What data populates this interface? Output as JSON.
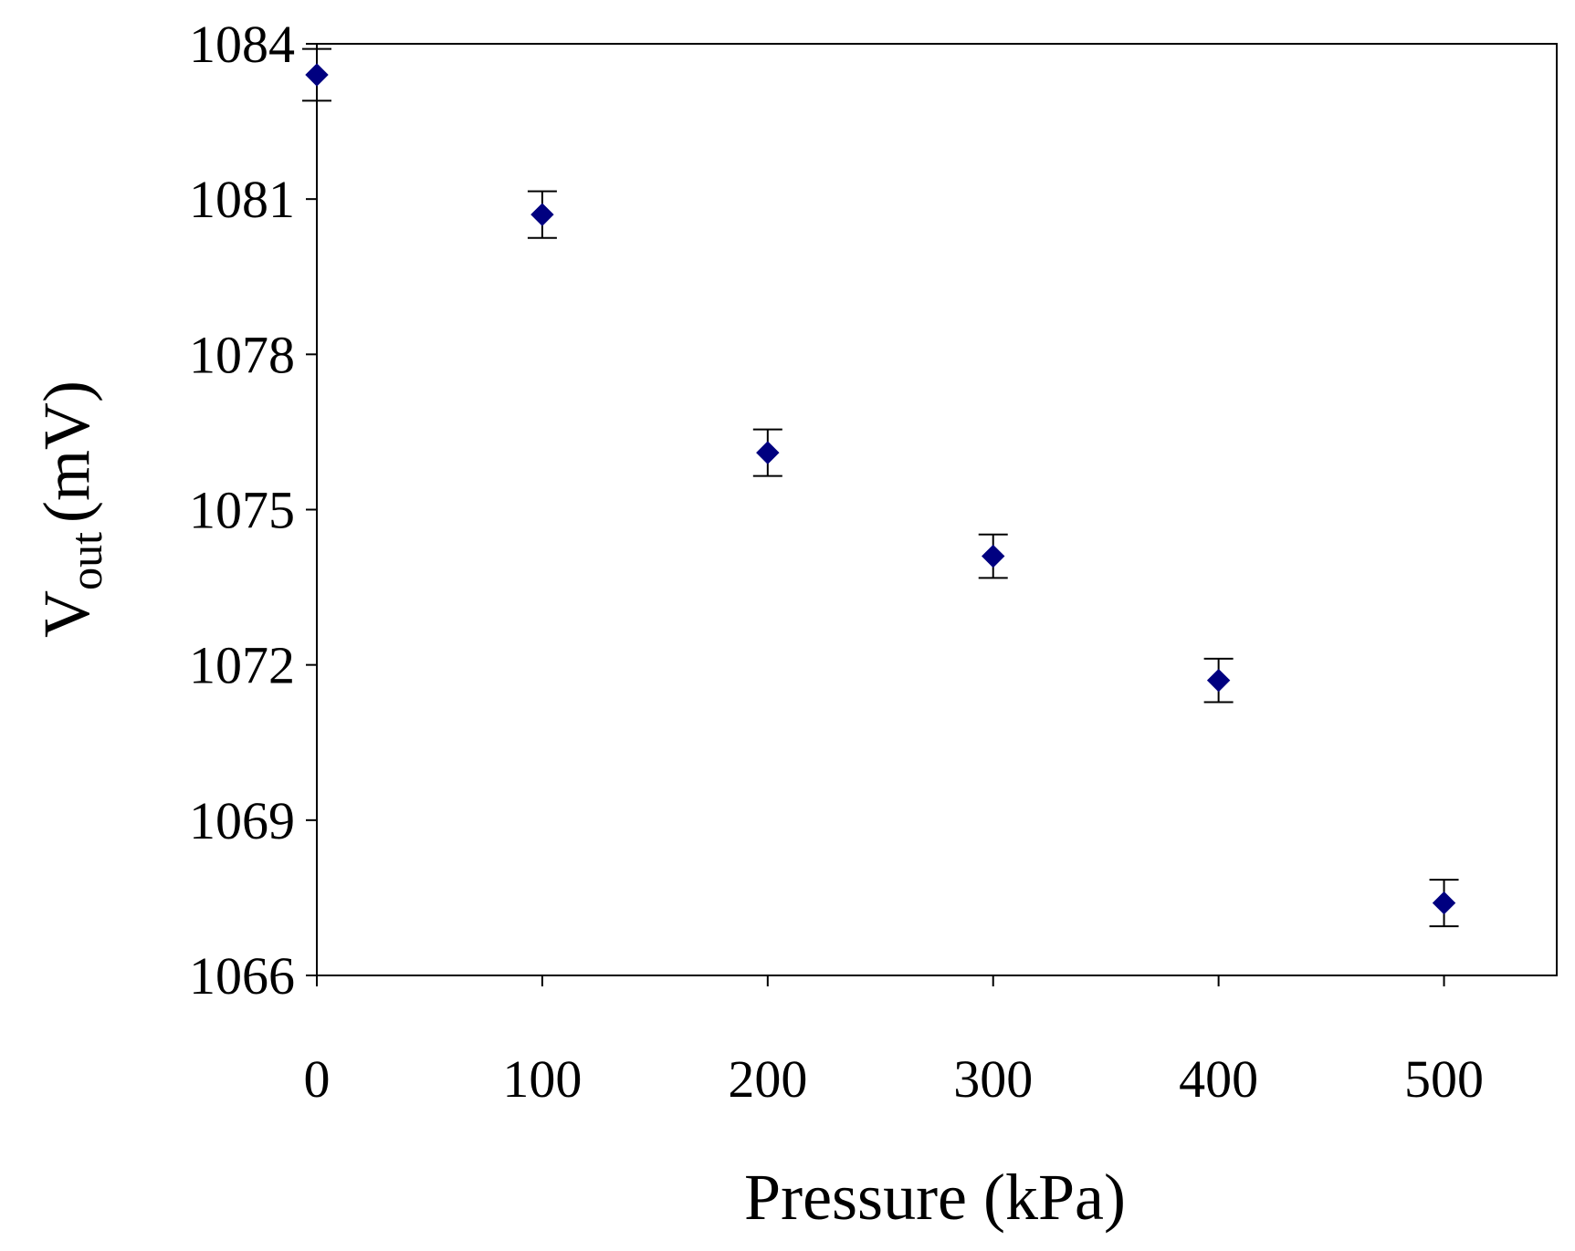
{
  "chart_data": {
    "type": "scatter",
    "title": "",
    "xlabel": "Pressure (kPa)",
    "ylabel": {
      "main": "V",
      "subscript": "out",
      "unit": "(mV)"
    },
    "xlim": [
      0,
      550
    ],
    "ylim": [
      1066,
      1084
    ],
    "x_ticks": [
      "0",
      "100",
      "200",
      "300",
      "400",
      "500"
    ],
    "y_ticks": [
      "1066",
      "1069",
      "1072",
      "1075",
      "1078",
      "1081",
      "1084"
    ],
    "grid": false,
    "legend": "none",
    "series": [
      {
        "marker": "diamond",
        "color": "#000080",
        "points": [
          {
            "x": 0,
            "y": 1083.4,
            "err": 0.5
          },
          {
            "x": 100,
            "y": 1080.7,
            "err": 0.45
          },
          {
            "x": 200,
            "y": 1076.1,
            "err": 0.45
          },
          {
            "x": 300,
            "y": 1074.1,
            "err": 0.42
          },
          {
            "x": 400,
            "y": 1071.7,
            "err": 0.42
          },
          {
            "x": 500,
            "y": 1067.4,
            "err": 0.45
          }
        ]
      }
    ]
  }
}
